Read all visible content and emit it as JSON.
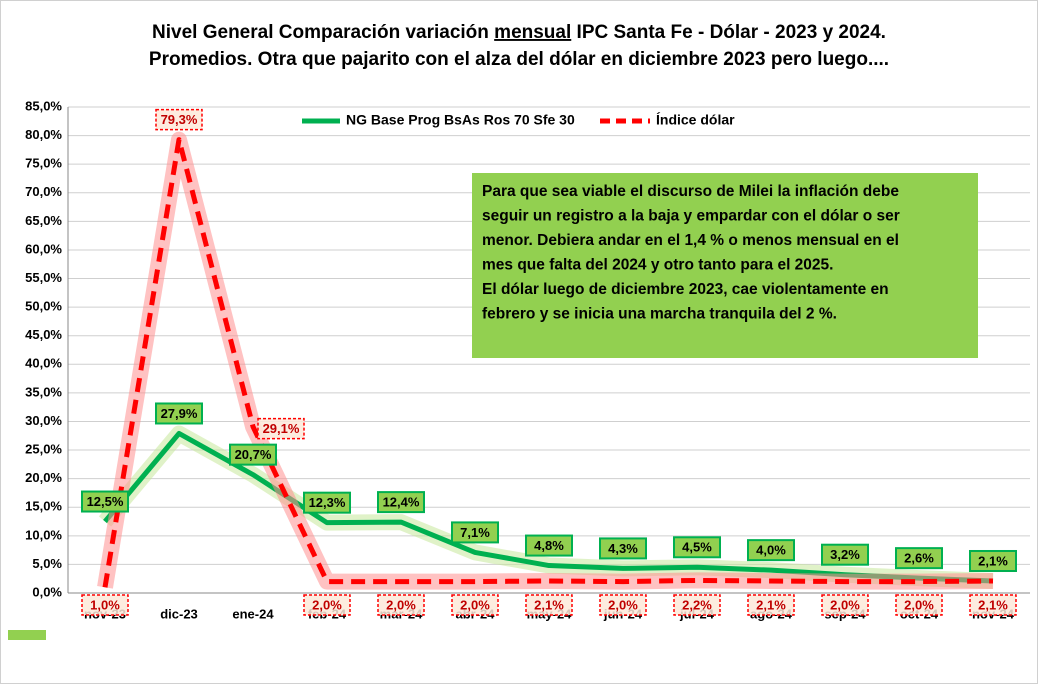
{
  "chart_data": {
    "type": "line",
    "title": {
      "line1": [
        "Nivel General Comparación variación ",
        "mensual",
        " IPC Santa Fe - Dólar - 2023 y 2024."
      ],
      "line2": "Promedios. Otra que pajarito con el alza del dólar en diciembre 2023 pero luego...."
    },
    "categories": [
      "nov-23",
      "dic-23",
      "ene-24",
      "feb-24",
      "mar-24",
      "abr-24",
      "may-24",
      "jun-24",
      "jul-24",
      "ago-24",
      "sep-24",
      "oct-24",
      "nov-24"
    ],
    "series": [
      {
        "name": "NG Base Prog BsAs Ros 70 Sfe 30",
        "color": "#00b050",
        "values": [
          12.5,
          27.9,
          20.7,
          12.3,
          12.4,
          7.1,
          4.8,
          4.3,
          4.5,
          4.0,
          3.2,
          2.6,
          2.1
        ],
        "value_labels": [
          "12,5%",
          "27,9%",
          "20,7%",
          "12,3%",
          "12,4%",
          "7,1%",
          "4,8%",
          "4,3%",
          "4,5%",
          "4,0%",
          "3,2%",
          "2,6%",
          "2,1%"
        ]
      },
      {
        "name": "Índice dólar",
        "color": "#ff0000",
        "values": [
          1.0,
          79.3,
          29.1,
          2.0,
          2.0,
          2.0,
          2.1,
          2.0,
          2.2,
          2.1,
          2.0,
          2.0,
          2.1
        ],
        "value_labels": [
          "1,0%",
          "79,3%",
          "29,1%",
          "2,0%",
          "2,0%",
          "2,0%",
          "2,1%",
          "2,0%",
          "2,2%",
          "2,1%",
          "2,0%",
          "2,0%",
          "2,1%"
        ]
      }
    ],
    "ylim": [
      0,
      85
    ],
    "yticks": [
      {
        "value": 0,
        "label": "0,0%"
      },
      {
        "value": 5,
        "label": "5,0%"
      },
      {
        "value": 10,
        "label": "10,0%"
      },
      {
        "value": 15,
        "label": "15,0%"
      },
      {
        "value": 20,
        "label": "20,0%"
      },
      {
        "value": 25,
        "label": "25,0%"
      },
      {
        "value": 30,
        "label": "30,0%"
      },
      {
        "value": 35,
        "label": "35,0%"
      },
      {
        "value": 40,
        "label": "40,0%"
      },
      {
        "value": 45,
        "label": "45,0%"
      },
      {
        "value": 50,
        "label": "50,0%"
      },
      {
        "value": 55,
        "label": "55,0%"
      },
      {
        "value": 60,
        "label": "60,0%"
      },
      {
        "value": 65,
        "label": "65,0%"
      },
      {
        "value": 70,
        "label": "70,0%"
      },
      {
        "value": 75,
        "label": "75,0%"
      },
      {
        "value": 80,
        "label": "80,0%"
      },
      {
        "value": 85,
        "label": "85,0%"
      }
    ],
    "grid": true,
    "legend": "top",
    "annotation": [
      "Para que sea viable el discurso de Milei la inflación debe",
      "seguir un registro a la baja  y empardar con el dólar o ser",
      "menor. Debiera andar en  el 1,4 % o menos mensual en el",
      "mes que falta del 2024 y otro tanto para el 2025.",
      "El dólar luego de diciembre 2023, cae violentamente en",
      "febrero y se inicia una marcha tranquila del 2 %."
    ]
  }
}
